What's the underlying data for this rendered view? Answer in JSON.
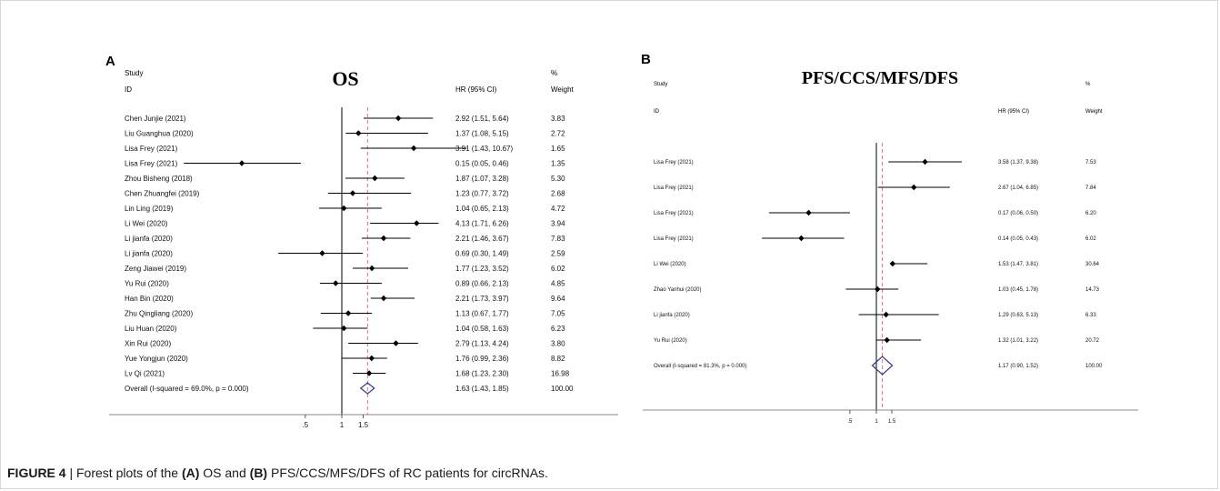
{
  "caption": {
    "label": "FIGURE 4",
    "sep": " | ",
    "p1": "Forest plots of the ",
    "a": "(A)",
    "p2": " OS and ",
    "b": "(B)",
    "p3": " PFS/CCS/MFS/DFS of RC patients for circRNAs."
  },
  "colors": {
    "line": "#000000",
    "dash": "#e06a8a",
    "diamond": "#2e3a8c",
    "frame": "#d8d8d8"
  },
  "chart_data": [
    {
      "type": "forest",
      "panel_letter": "A",
      "title": "OS",
      "header": {
        "study_top": "Study",
        "study_id": "ID",
        "hr": "HR (95% CI)",
        "pct": "%",
        "weight": "Weight"
      },
      "xticks": [
        {
          "v": 0.5,
          "label": ".5"
        },
        {
          "v": 1,
          "label": "1"
        },
        {
          "v": 1.5,
          "label": "1.5"
        }
      ],
      "null_line": 1,
      "overall_line": 1.63,
      "studies": [
        {
          "id": "Chen Junjie (2021)",
          "hr": 2.92,
          "lo": 1.51,
          "hi": 5.64,
          "ci": "2.92 (1.51, 5.64)",
          "w": "3.83"
        },
        {
          "id": "Liu Guanghua (2020)",
          "hr": 1.37,
          "lo": 1.08,
          "hi": 5.15,
          "ci": "1.37 (1.08, 5.15)",
          "w": "2.72"
        },
        {
          "id": "Lisa Frey (2021)",
          "hr": 3.91,
          "lo": 1.43,
          "hi": 10.67,
          "ci": "3.91 (1.43, 10.67)",
          "w": "1.65"
        },
        {
          "id": "Lisa Frey (2021)",
          "hr": 0.15,
          "lo": 0.05,
          "hi": 0.46,
          "ci": "0.15 (0.05, 0.46)",
          "w": "1.35"
        },
        {
          "id": "Zhou Bisheng (2018)",
          "hr": 1.87,
          "lo": 1.07,
          "hi": 3.28,
          "ci": "1.87 (1.07, 3.28)",
          "w": "5.30"
        },
        {
          "id": "Chen Zhuangfei (2019)",
          "hr": 1.23,
          "lo": 0.77,
          "hi": 3.72,
          "ci": "1.23 (0.77, 3.72)",
          "w": "2.68"
        },
        {
          "id": "Lin Ling (2019)",
          "hr": 1.04,
          "lo": 0.65,
          "hi": 2.13,
          "ci": "1.04 (0.65, 2.13)",
          "w": "4.72"
        },
        {
          "id": "Li Wei (2020)",
          "hr": 4.13,
          "lo": 1.71,
          "hi": 6.26,
          "ci": "4.13 (1.71, 6.26)",
          "w": "3.94"
        },
        {
          "id": "Li jianfa (2020)",
          "hr": 2.21,
          "lo": 1.46,
          "hi": 3.67,
          "ci": "2.21 (1.46, 3.67)",
          "w": "7.83"
        },
        {
          "id": "Li jianfa (2020)",
          "hr": 0.69,
          "lo": 0.3,
          "hi": 1.49,
          "ci": "0.69 (0.30, 1.49)",
          "w": "2.59"
        },
        {
          "id": "Zeng Jiawei (2019)",
          "hr": 1.77,
          "lo": 1.23,
          "hi": 3.52,
          "ci": "1.77 (1.23, 3.52)",
          "w": "6.02"
        },
        {
          "id": "Yu Rui (2020)",
          "hr": 0.89,
          "lo": 0.66,
          "hi": 2.13,
          "ci": "0.89 (0.66, 2.13)",
          "w": "4.85"
        },
        {
          "id": "Han Bin (2020)",
          "hr": 2.21,
          "lo": 1.73,
          "hi": 3.97,
          "ci": "2.21 (1.73, 3.97)",
          "w": "9.64"
        },
        {
          "id": "Zhu Qingliang (2020)",
          "hr": 1.13,
          "lo": 0.67,
          "hi": 1.77,
          "ci": "1.13 (0.67, 1.77)",
          "w": "7.05"
        },
        {
          "id": "Liu Huan (2020)",
          "hr": 1.04,
          "lo": 0.58,
          "hi": 1.63,
          "ci": "1.04 (0.58, 1.63)",
          "w": "6.23"
        },
        {
          "id": "Xin Rui (2020)",
          "hr": 2.79,
          "lo": 1.13,
          "hi": 4.24,
          "ci": "2.79 (1.13, 4.24)",
          "w": "3.80"
        },
        {
          "id": "Yue Yongjun (2020)",
          "hr": 1.76,
          "lo": 0.99,
          "hi": 2.36,
          "ci": "1.76 (0.99, 2.36)",
          "w": "8.82"
        },
        {
          "id": "Lv Qi (2021)",
          "hr": 1.68,
          "lo": 1.23,
          "hi": 2.3,
          "ci": "1.68 (1.23, 2.30)",
          "w": "16.98"
        }
      ],
      "overall": {
        "id": "Overall  (I-squared = 69.0%, p = 0.000)",
        "hr": 1.63,
        "lo": 1.43,
        "hi": 1.85,
        "ci": "1.63 (1.43, 1.85)",
        "w": "100.00"
      }
    },
    {
      "type": "forest",
      "panel_letter": "B",
      "title": "PFS/CCS/MFS/DFS",
      "header": {
        "study_top": "Study",
        "study_id": "ID",
        "hr": "HR (95% CI)",
        "pct": "%",
        "weight": "Weight"
      },
      "xticks": [
        {
          "v": 0.5,
          "label": ".5"
        },
        {
          "v": 1,
          "label": "1"
        },
        {
          "v": 1.5,
          "label": "1.5"
        }
      ],
      "null_line": 1,
      "overall_line": 1.17,
      "studies": [
        {
          "id": "Lisa Frey (2021)",
          "hr": 3.58,
          "lo": 1.37,
          "hi": 9.38,
          "ci": "3.58 (1.37, 9.38)",
          "w": "7.53"
        },
        {
          "id": "Lisa Frey (2021)",
          "hr": 2.67,
          "lo": 1.04,
          "hi": 6.85,
          "ci": "2.67 (1.04, 6.85)",
          "w": "7.84"
        },
        {
          "id": "Lisa Frey (2021)",
          "hr": 0.17,
          "lo": 0.06,
          "hi": 0.5,
          "ci": "0.17 (0.06, 0.50)",
          "w": "6.20"
        },
        {
          "id": "Lisa Frey (2021)",
          "hr": 0.14,
          "lo": 0.05,
          "hi": 0.43,
          "ci": "0.14 (0.05, 0.43)",
          "w": "6.02"
        },
        {
          "id": "Li Wei (2020)",
          "hr": 1.53,
          "lo": 1.47,
          "hi": 3.81,
          "ci": "1.53 (1.47, 3.81)",
          "w": "30.64"
        },
        {
          "id": "Zhao Yanhui (2020)",
          "hr": 1.03,
          "lo": 0.45,
          "hi": 1.78,
          "ci": "1.03 (0.45, 1.78)",
          "w": "14.73"
        },
        {
          "id": "Li jianfa (2020)",
          "hr": 1.29,
          "lo": 0.63,
          "hi": 5.13,
          "ci": "1.29 (0.63, 5.13)",
          "w": "6.33"
        },
        {
          "id": "Yu Rui (2020)",
          "hr": 1.32,
          "lo": 1.01,
          "hi": 3.22,
          "ci": "1.32 (1.01, 3.22)",
          "w": "20.72"
        }
      ],
      "overall": {
        "id": "Overall  (I-squared = 81.3%, p = 0.000)",
        "hr": 1.17,
        "lo": 0.9,
        "hi": 1.52,
        "ci": "1.17 (0.90, 1.52)",
        "w": "100.00"
      }
    }
  ]
}
